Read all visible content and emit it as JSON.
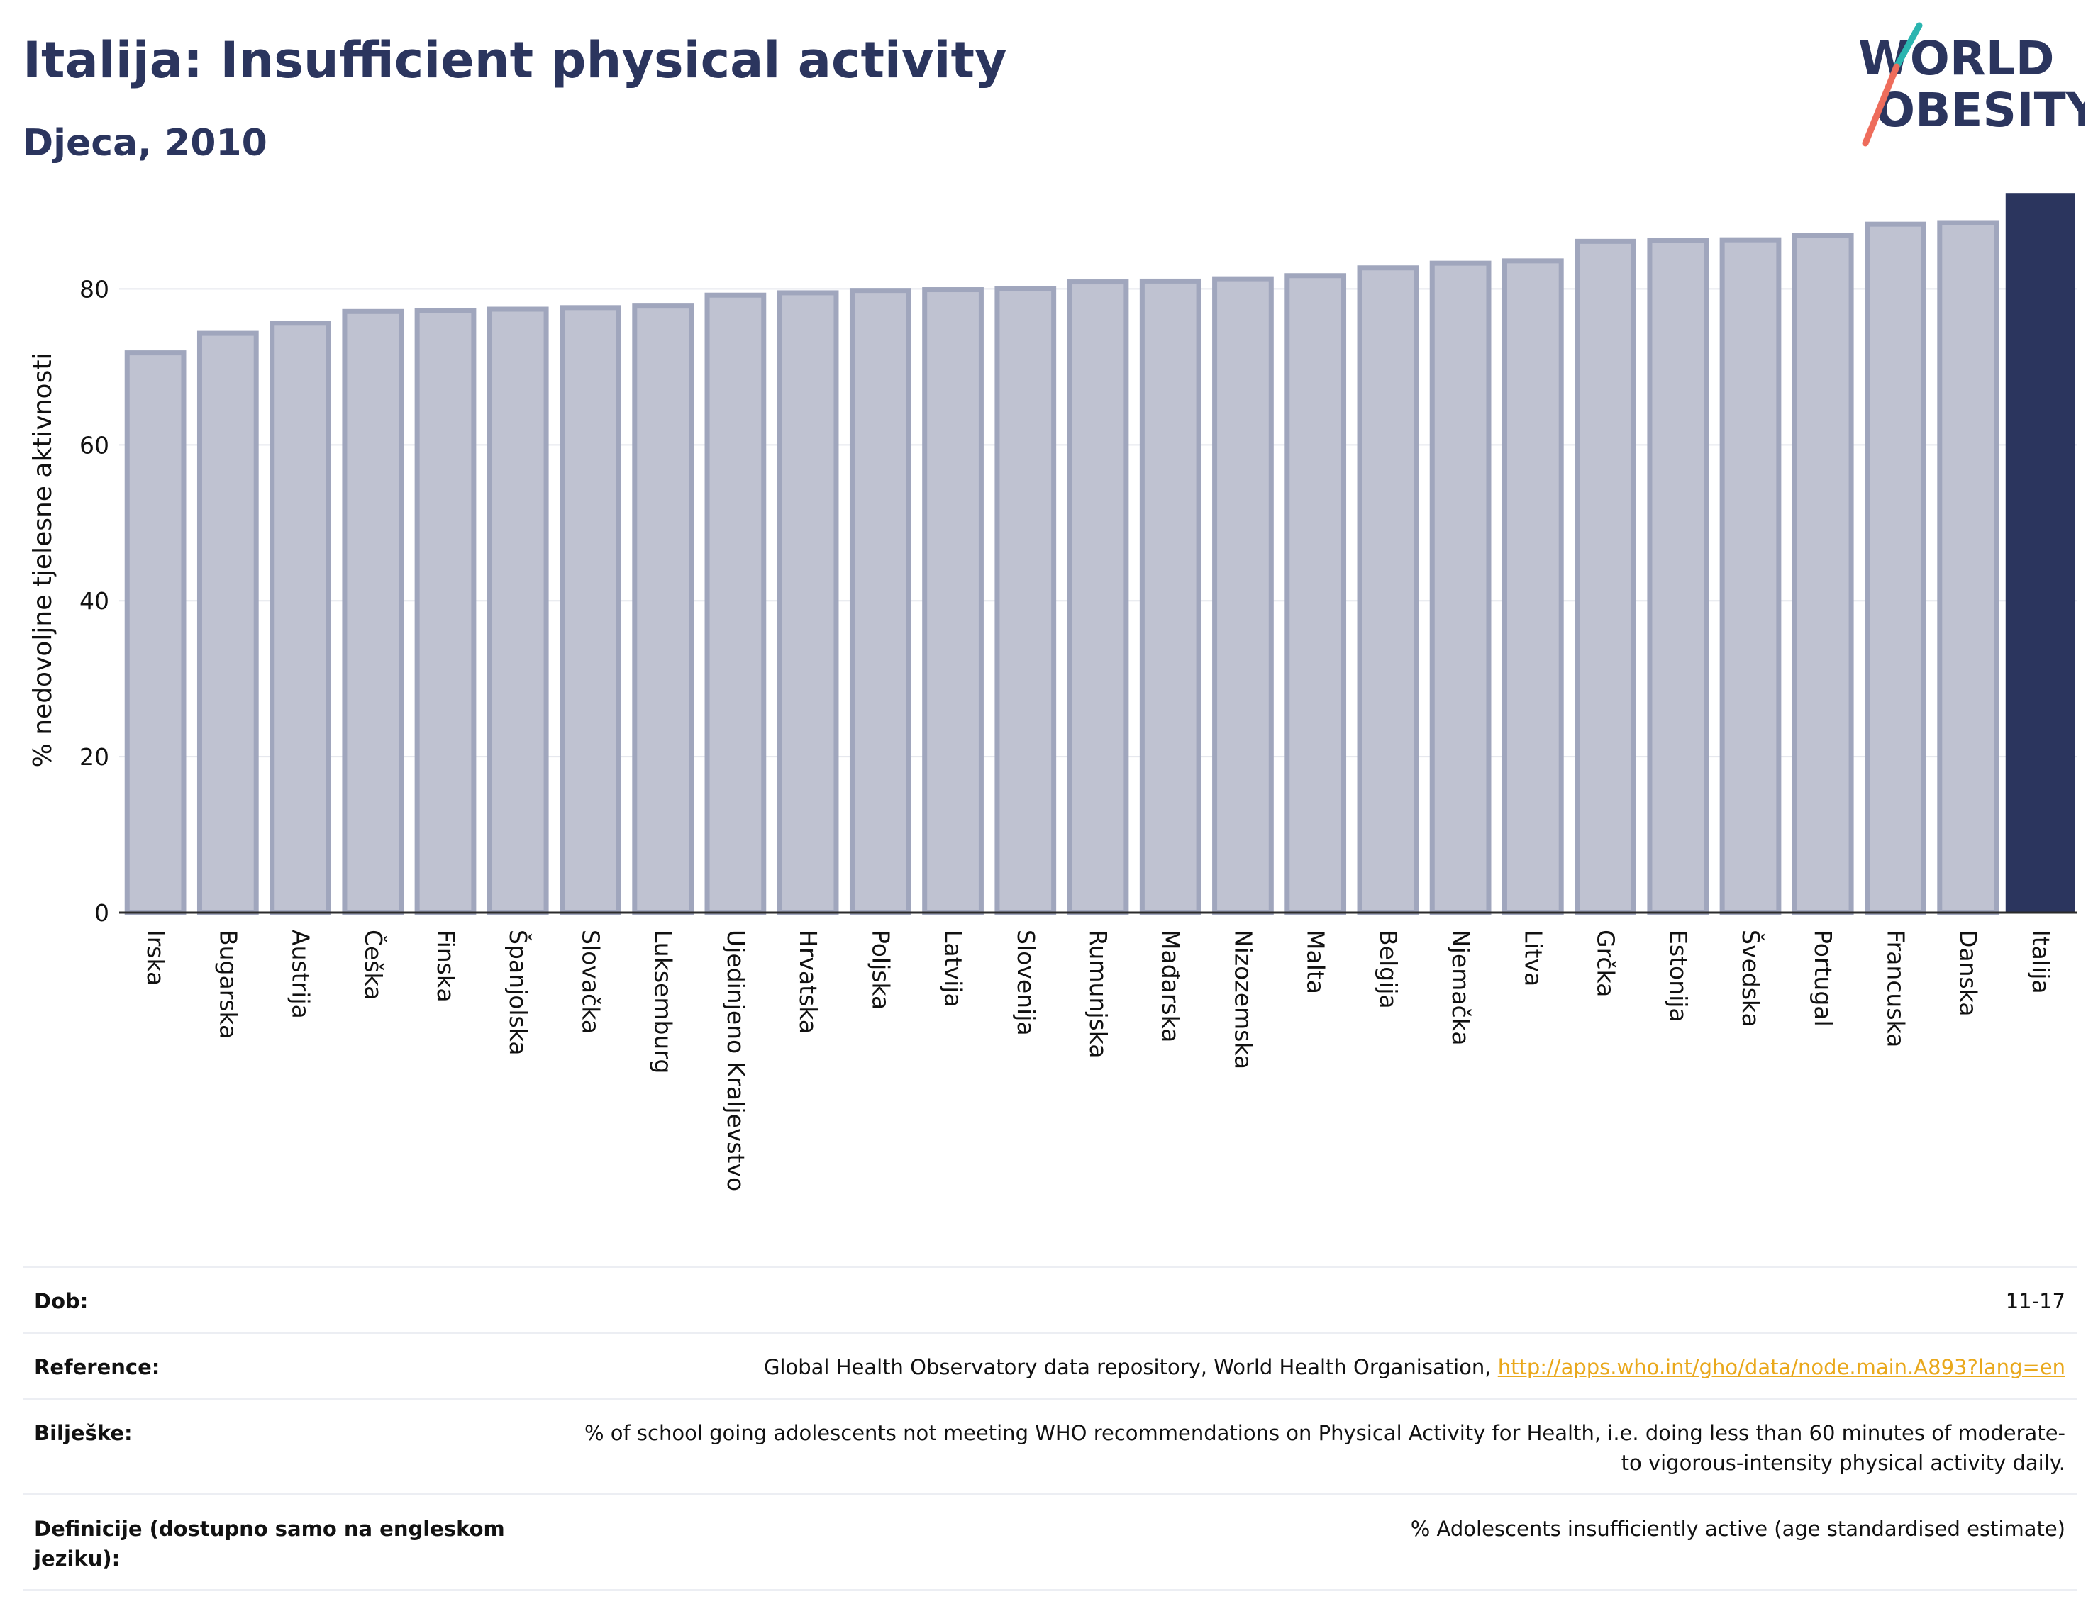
{
  "title": "Italija: Insufficient physical activity",
  "subtitle": "Djeca, 2010",
  "logo": {
    "line1": "WORLD",
    "line2": "OBESITY",
    "colors": {
      "navy": "#2b355e",
      "teal": "#2bb5b0",
      "coral": "#ee6c5b"
    }
  },
  "chart_data": {
    "type": "bar",
    "ylabel": "% nedovoljne tjelesne aktivnosti",
    "ylim": [
      0,
      92.5
    ],
    "yticks": [
      0,
      20,
      40,
      60,
      80
    ],
    "grid": true,
    "categories": [
      "Irska",
      "Bugarska",
      "Austrija",
      "Češka",
      "Finska",
      "Španjolska",
      "Slovačka",
      "Luksemburg",
      "Ujedinjeno Kraljevstvo",
      "Hrvatska",
      "Poljska",
      "Latvija",
      "Slovenija",
      "Rumunjska",
      "Mađarska",
      "Nizozemska",
      "Malta",
      "Belgija",
      "Njemačka",
      "Litva",
      "Grčka",
      "Estonija",
      "Švedska",
      "Portugal",
      "Francuska",
      "Danska",
      "Italija"
    ],
    "values": [
      71.8,
      74.3,
      75.6,
      77.1,
      77.2,
      77.4,
      77.6,
      77.8,
      79.2,
      79.5,
      79.8,
      79.9,
      80.0,
      80.9,
      81.0,
      81.3,
      81.7,
      82.7,
      83.3,
      83.6,
      86.1,
      86.2,
      86.3,
      86.9,
      88.3,
      88.5,
      92.3
    ],
    "highlight": "Italija",
    "colors": {
      "bar": "#bfc2d1",
      "bar_edge": "#a0a6bd",
      "highlight": "#2b355e"
    }
  },
  "info": [
    {
      "label": "Dob:",
      "value": "11-17"
    },
    {
      "label": "Reference:",
      "value": "Global Health Observatory data repository, World Health Organisation, ",
      "link": "http://apps.who.int/gho/data/node.main.A893?lang=en"
    },
    {
      "label": "Bilješke:",
      "value": "% of school going adolescents not meeting WHO recommendations on Physical Activity for Health, i.e. doing less than 60 minutes of moderate- to vigorous-intensity physical activity daily."
    },
    {
      "label": "Definicije (dostupno samo na engleskom jeziku):",
      "value": "% Adolescents insufficiently active (age standardised estimate)"
    }
  ]
}
